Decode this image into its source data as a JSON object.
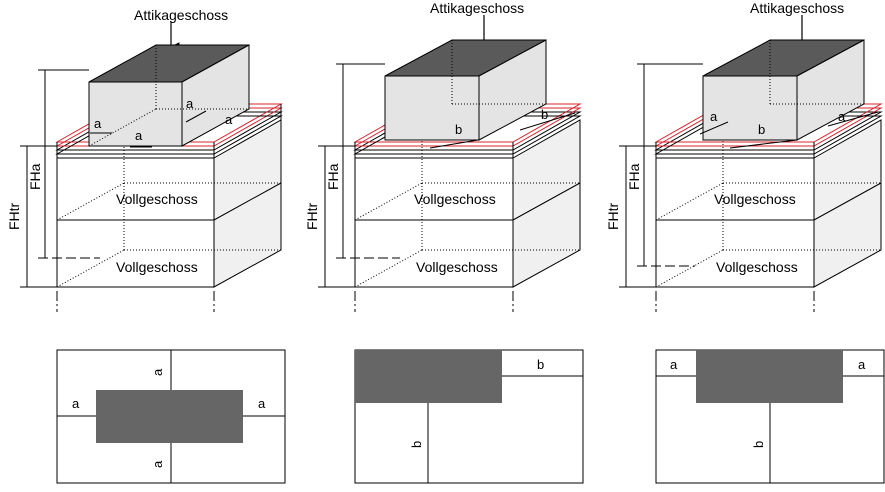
{
  "diagrams": [
    {
      "top_label": "Attikageschoss",
      "floor_labels": [
        "Vollgeschoss",
        "Vollgeschoss"
      ],
      "fhtr_label": "FHtr",
      "fha_label": "FHa",
      "iso_dims": [
        "a",
        "a",
        "a",
        "a"
      ],
      "plan_dims": [
        "a",
        "a",
        "a",
        "a"
      ]
    },
    {
      "top_label": "Attikageschoss",
      "floor_labels": [
        "Vollgeschoss",
        "Vollgeschoss"
      ],
      "fhtr_label": "FHtr",
      "fha_label": "FHa",
      "iso_dims": [
        "b",
        "b"
      ],
      "plan_dims": [
        "b",
        "b"
      ]
    },
    {
      "top_label": "Attikageschoss",
      "floor_labels": [
        "Vollgeschoss",
        "Vollgeschoss"
      ],
      "fhtr_label": "FHtr",
      "fha_label": "FHa",
      "iso_dims": [
        "a",
        "b",
        "a"
      ],
      "plan_dims": [
        "a",
        "a",
        "b"
      ]
    }
  ],
  "colors": {
    "attic_face": "#e4e4e4",
    "attic_top": "#5a5a5a",
    "side_face": "#f0f0f0",
    "plan_fill": "#666666",
    "parapet_red": "#d9232e"
  }
}
